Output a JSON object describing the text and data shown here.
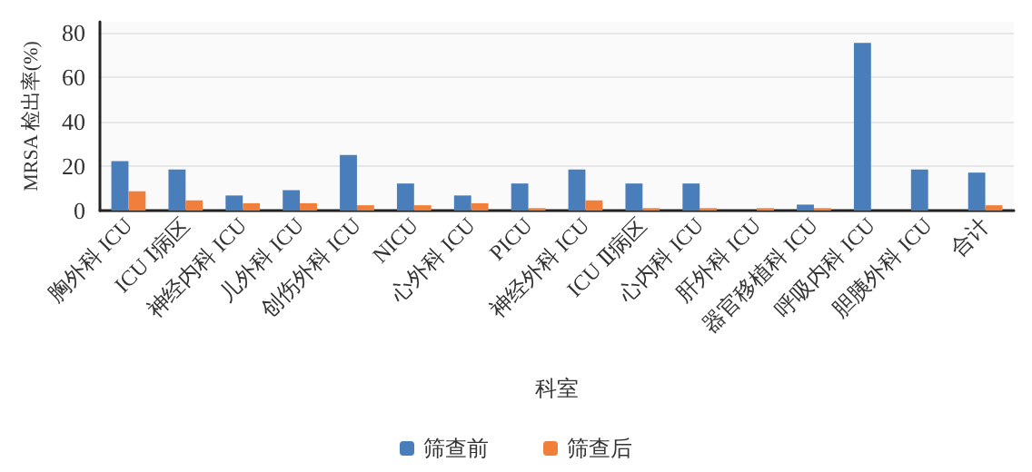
{
  "chart_data": {
    "type": "bar",
    "xlabel": "科室",
    "ylabel": "MRSA 检出率(%)",
    "categories": [
      "胸外科 ICU",
      "ICU Ⅰ病区",
      "神经内科 ICU",
      "儿外科 ICU",
      "创伤外科 ICU",
      "NICU",
      "心外科 ICU",
      "PICU",
      "神经外科 ICU",
      "ICU Ⅱ病区",
      "心内科 ICU",
      "肝外科 ICU",
      "器官移植科 ICU",
      "呼吸内科 ICU",
      "胆胰外科 ICU",
      "合计"
    ],
    "series": [
      {
        "name": "筛查前",
        "color": "#4a7ebb",
        "values": [
          22.3,
          18.5,
          6.8,
          9.2,
          25,
          12.2,
          6.8,
          12.2,
          18.5,
          12.2,
          12.2,
          0,
          2.7,
          75.5,
          18.5,
          17.1
        ]
      },
      {
        "name": "筛查后",
        "color": "#f07f3c",
        "values": [
          8.7,
          4.6,
          3.3,
          3.3,
          2.4,
          2.4,
          3.3,
          1.1,
          4.6,
          1.1,
          1.1,
          1.1,
          1.1,
          0,
          0,
          2.4
        ]
      }
    ],
    "ylim": [
      0,
      85
    ],
    "yticks": [
      0,
      20,
      40,
      60,
      80
    ],
    "grid": "y",
    "legend": "bottom"
  }
}
